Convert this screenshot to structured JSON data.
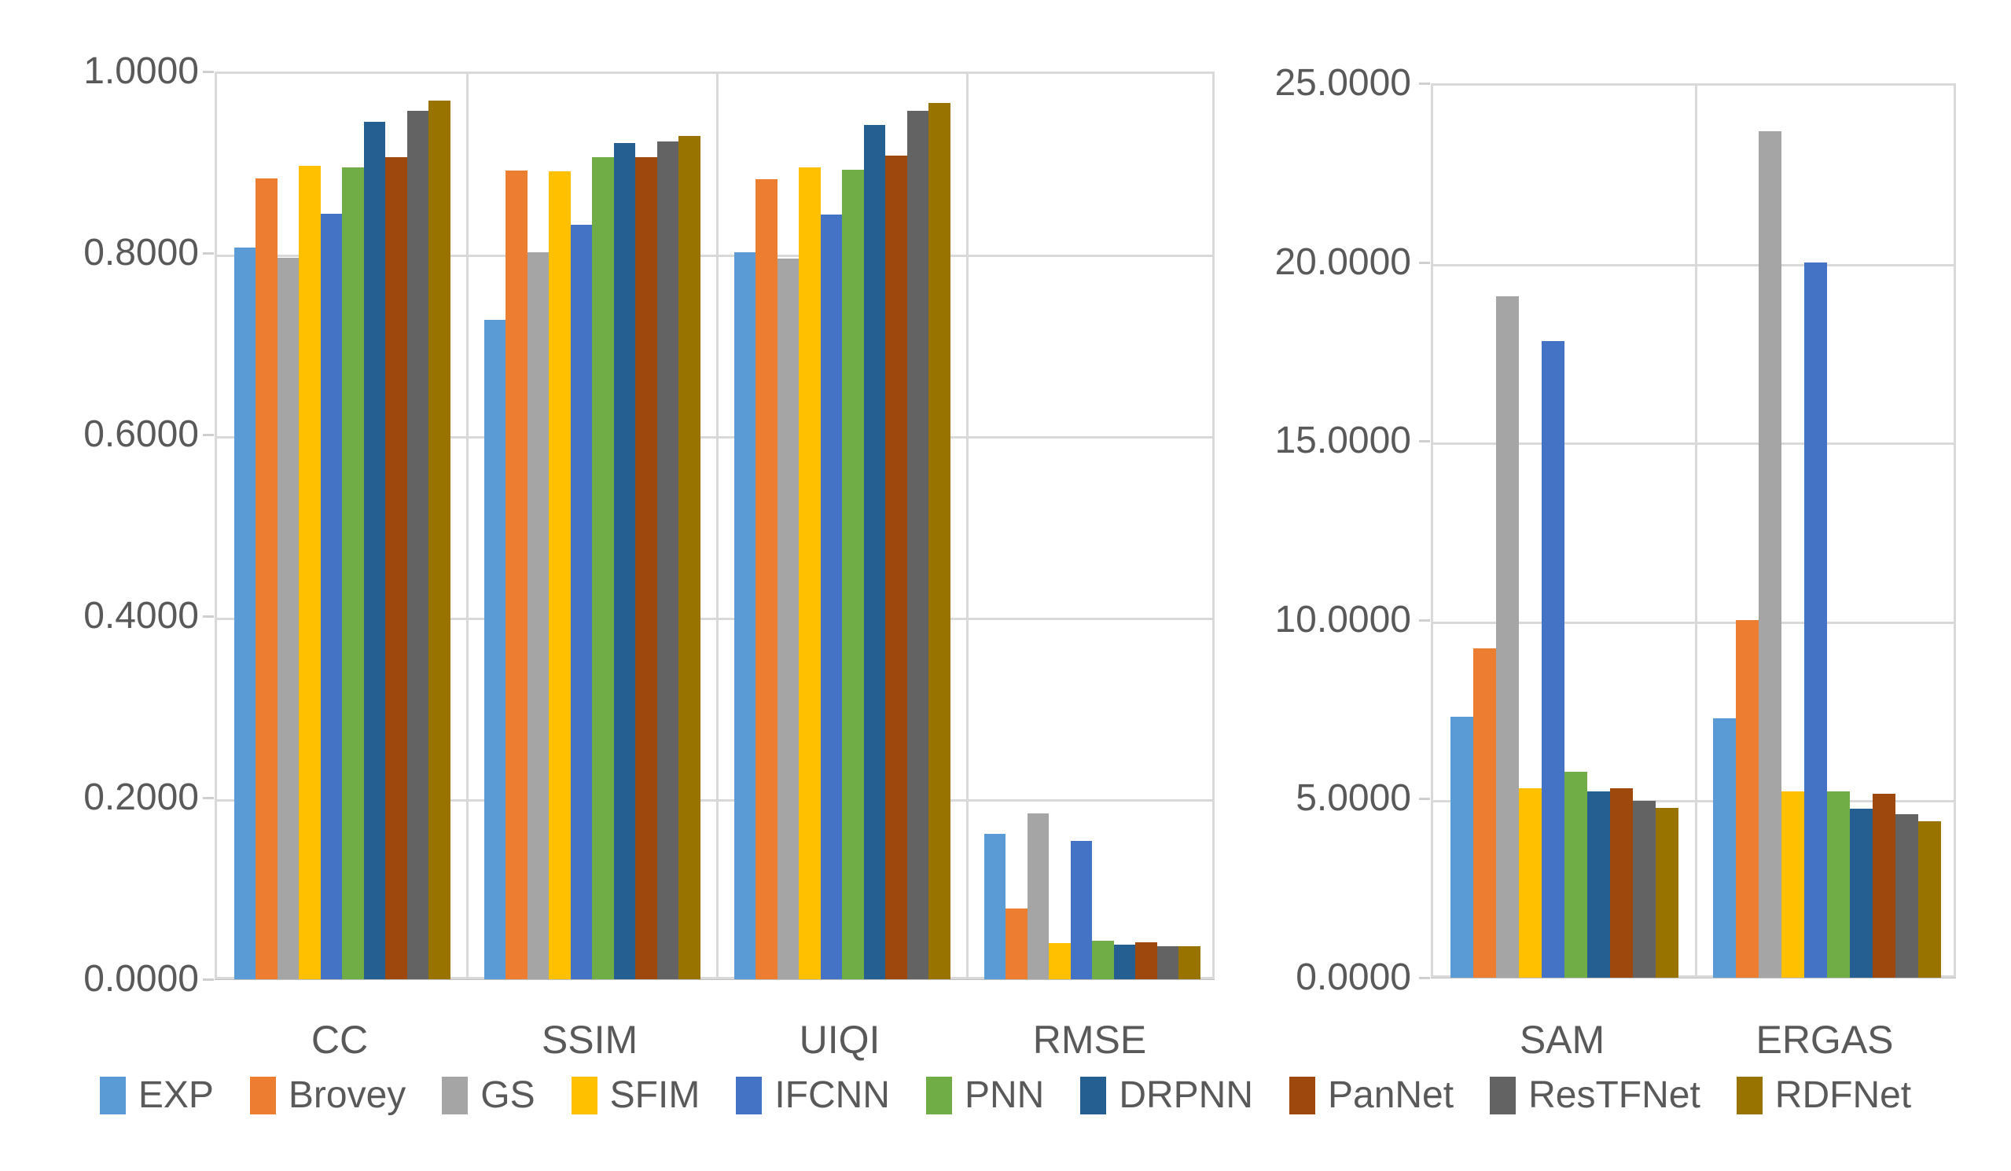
{
  "colors": {
    "background": "#FFFFFF",
    "text": "#595959",
    "gridline": "#D9D9D9",
    "axis_line": "#BFBFBF"
  },
  "legend": {
    "position": "bottom",
    "items": [
      {
        "label": "EXP",
        "color": "#5B9BD5"
      },
      {
        "label": "Brovey",
        "color": "#ED7D31"
      },
      {
        "label": "GS",
        "color": "#A5A5A5"
      },
      {
        "label": "SFIM",
        "color": "#FFC000"
      },
      {
        "label": "IFCNN",
        "color": "#4472C4"
      },
      {
        "label": "PNN",
        "color": "#70AD47"
      },
      {
        "label": "DRPNN",
        "color": "#255E91"
      },
      {
        "label": "PanNet",
        "color": "#9E480E"
      },
      {
        "label": "ResTFNet",
        "color": "#636363"
      },
      {
        "label": "RDFNet",
        "color": "#997300"
      }
    ]
  },
  "chart_data": [
    {
      "type": "bar",
      "title": "",
      "xlabel": "",
      "ylabel": "",
      "categories": [
        "CC",
        "SSIM",
        "UIQI",
        "RMSE"
      ],
      "ylim": [
        0,
        1
      ],
      "ytick_labels": [
        "1.0000",
        "0.8000",
        "0.6000",
        "0.4000",
        "0.2000",
        "0.0000"
      ],
      "grid": true,
      "legend_position": "bottom",
      "series": [
        {
          "name": "EXP",
          "values": [
            0.806,
            0.726,
            0.801,
            0.16
          ]
        },
        {
          "name": "Brovey",
          "values": [
            0.882,
            0.891,
            0.881,
            0.078
          ]
        },
        {
          "name": "GS",
          "values": [
            0.795,
            0.801,
            0.794,
            0.183
          ]
        },
        {
          "name": "SFIM",
          "values": [
            0.896,
            0.89,
            0.894,
            0.04
          ]
        },
        {
          "name": "IFCNN",
          "values": [
            0.843,
            0.831,
            0.842,
            0.152
          ]
        },
        {
          "name": "PNN",
          "values": [
            0.894,
            0.906,
            0.892,
            0.042
          ]
        },
        {
          "name": "DRPNN",
          "values": [
            0.945,
            0.921,
            0.941,
            0.038
          ]
        },
        {
          "name": "PanNet",
          "values": [
            0.906,
            0.906,
            0.907,
            0.041
          ]
        },
        {
          "name": "ResTFNet",
          "values": [
            0.957,
            0.923,
            0.957,
            0.036
          ]
        },
        {
          "name": "RDFNet",
          "values": [
            0.968,
            0.929,
            0.965,
            0.036
          ]
        }
      ]
    },
    {
      "type": "bar",
      "title": "",
      "xlabel": "",
      "ylabel": "",
      "categories": [
        "SAM",
        "ERGAS"
      ],
      "ylim": [
        0,
        25
      ],
      "ytick_labels": [
        "25.0000",
        "20.0000",
        "15.0000",
        "10.0000",
        "5.0000",
        "0.0000"
      ],
      "grid": true,
      "legend_position": "bottom",
      "series": [
        {
          "name": "EXP",
          "values": [
            7.3,
            7.25
          ]
        },
        {
          "name": "Brovey",
          "values": [
            9.2,
            10.0
          ]
        },
        {
          "name": "GS",
          "values": [
            19.05,
            23.65
          ]
        },
        {
          "name": "SFIM",
          "values": [
            5.3,
            5.2
          ]
        },
        {
          "name": "IFCNN",
          "values": [
            17.8,
            20.0
          ]
        },
        {
          "name": "PNN",
          "values": [
            5.75,
            5.2
          ]
        },
        {
          "name": "DRPNN",
          "values": [
            5.2,
            4.72
          ]
        },
        {
          "name": "PanNet",
          "values": [
            5.3,
            5.15
          ]
        },
        {
          "name": "ResTFNet",
          "values": [
            4.95,
            4.58
          ]
        },
        {
          "name": "RDFNet",
          "values": [
            4.75,
            4.38
          ]
        }
      ]
    }
  ]
}
